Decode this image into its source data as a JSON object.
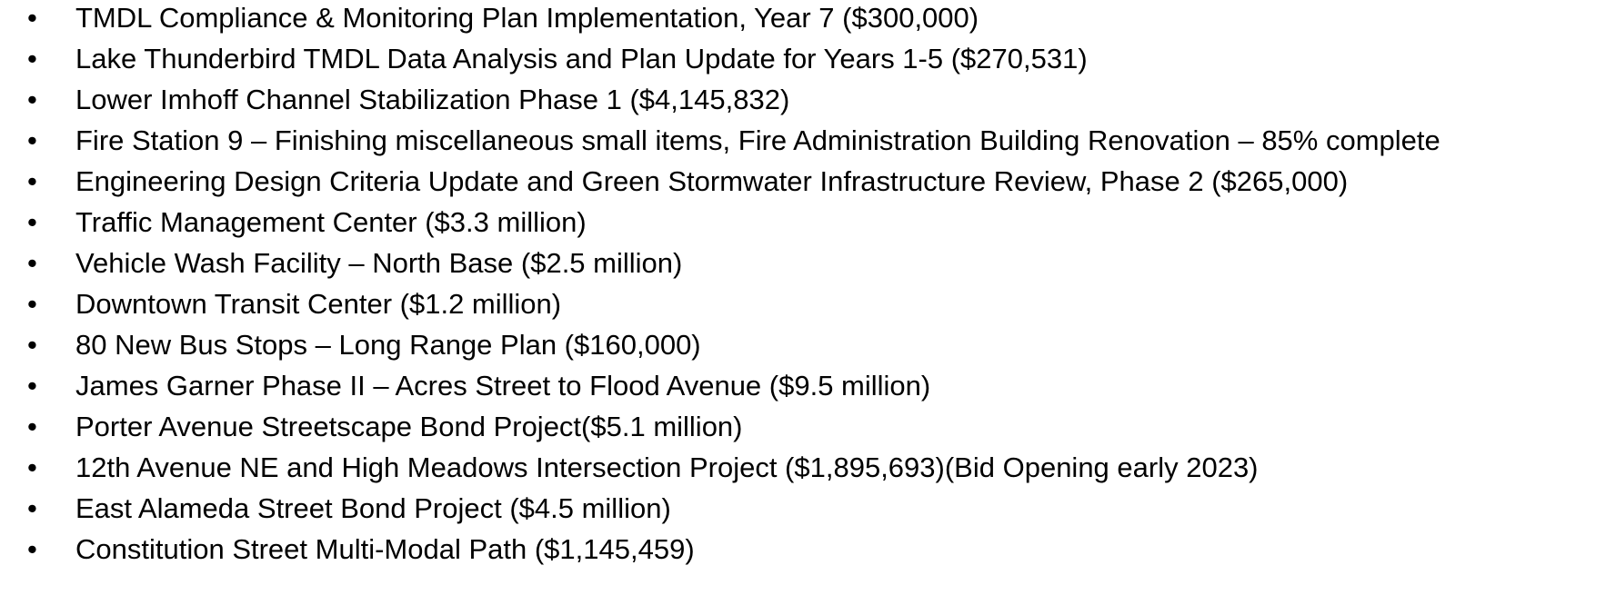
{
  "items": [
    "TMDL Compliance & Monitoring Plan Implementation, Year 7 ($300,000)",
    "Lake Thunderbird TMDL Data Analysis and Plan Update for Years 1-5 ($270,531)",
    "Lower Imhoff Channel Stabilization Phase 1 ($4,145,832)",
    "Fire Station 9 – Finishing miscellaneous small items, Fire Administration Building Renovation – 85% complete",
    "Engineering Design Criteria Update and Green Stormwater Infrastructure Review, Phase 2 ($265,000)",
    "Traffic Management Center ($3.3 million)",
    "Vehicle Wash Facility – North Base ($2.5 million)",
    "Downtown Transit Center ($1.2 million)",
    "80 New Bus Stops – Long Range Plan ($160,000)",
    "James Garner Phase II – Acres Street to Flood Avenue ($9.5 million)",
    "Porter Avenue Streetscape Bond Project($5.1 million)",
    "12th Avenue NE and High Meadows Intersection Project ($1,895,693)(Bid Opening early 2023)",
    "East Alameda Street Bond Project ($4.5 million)",
    "Constitution Street Multi-Modal Path ($1,145,459)"
  ]
}
